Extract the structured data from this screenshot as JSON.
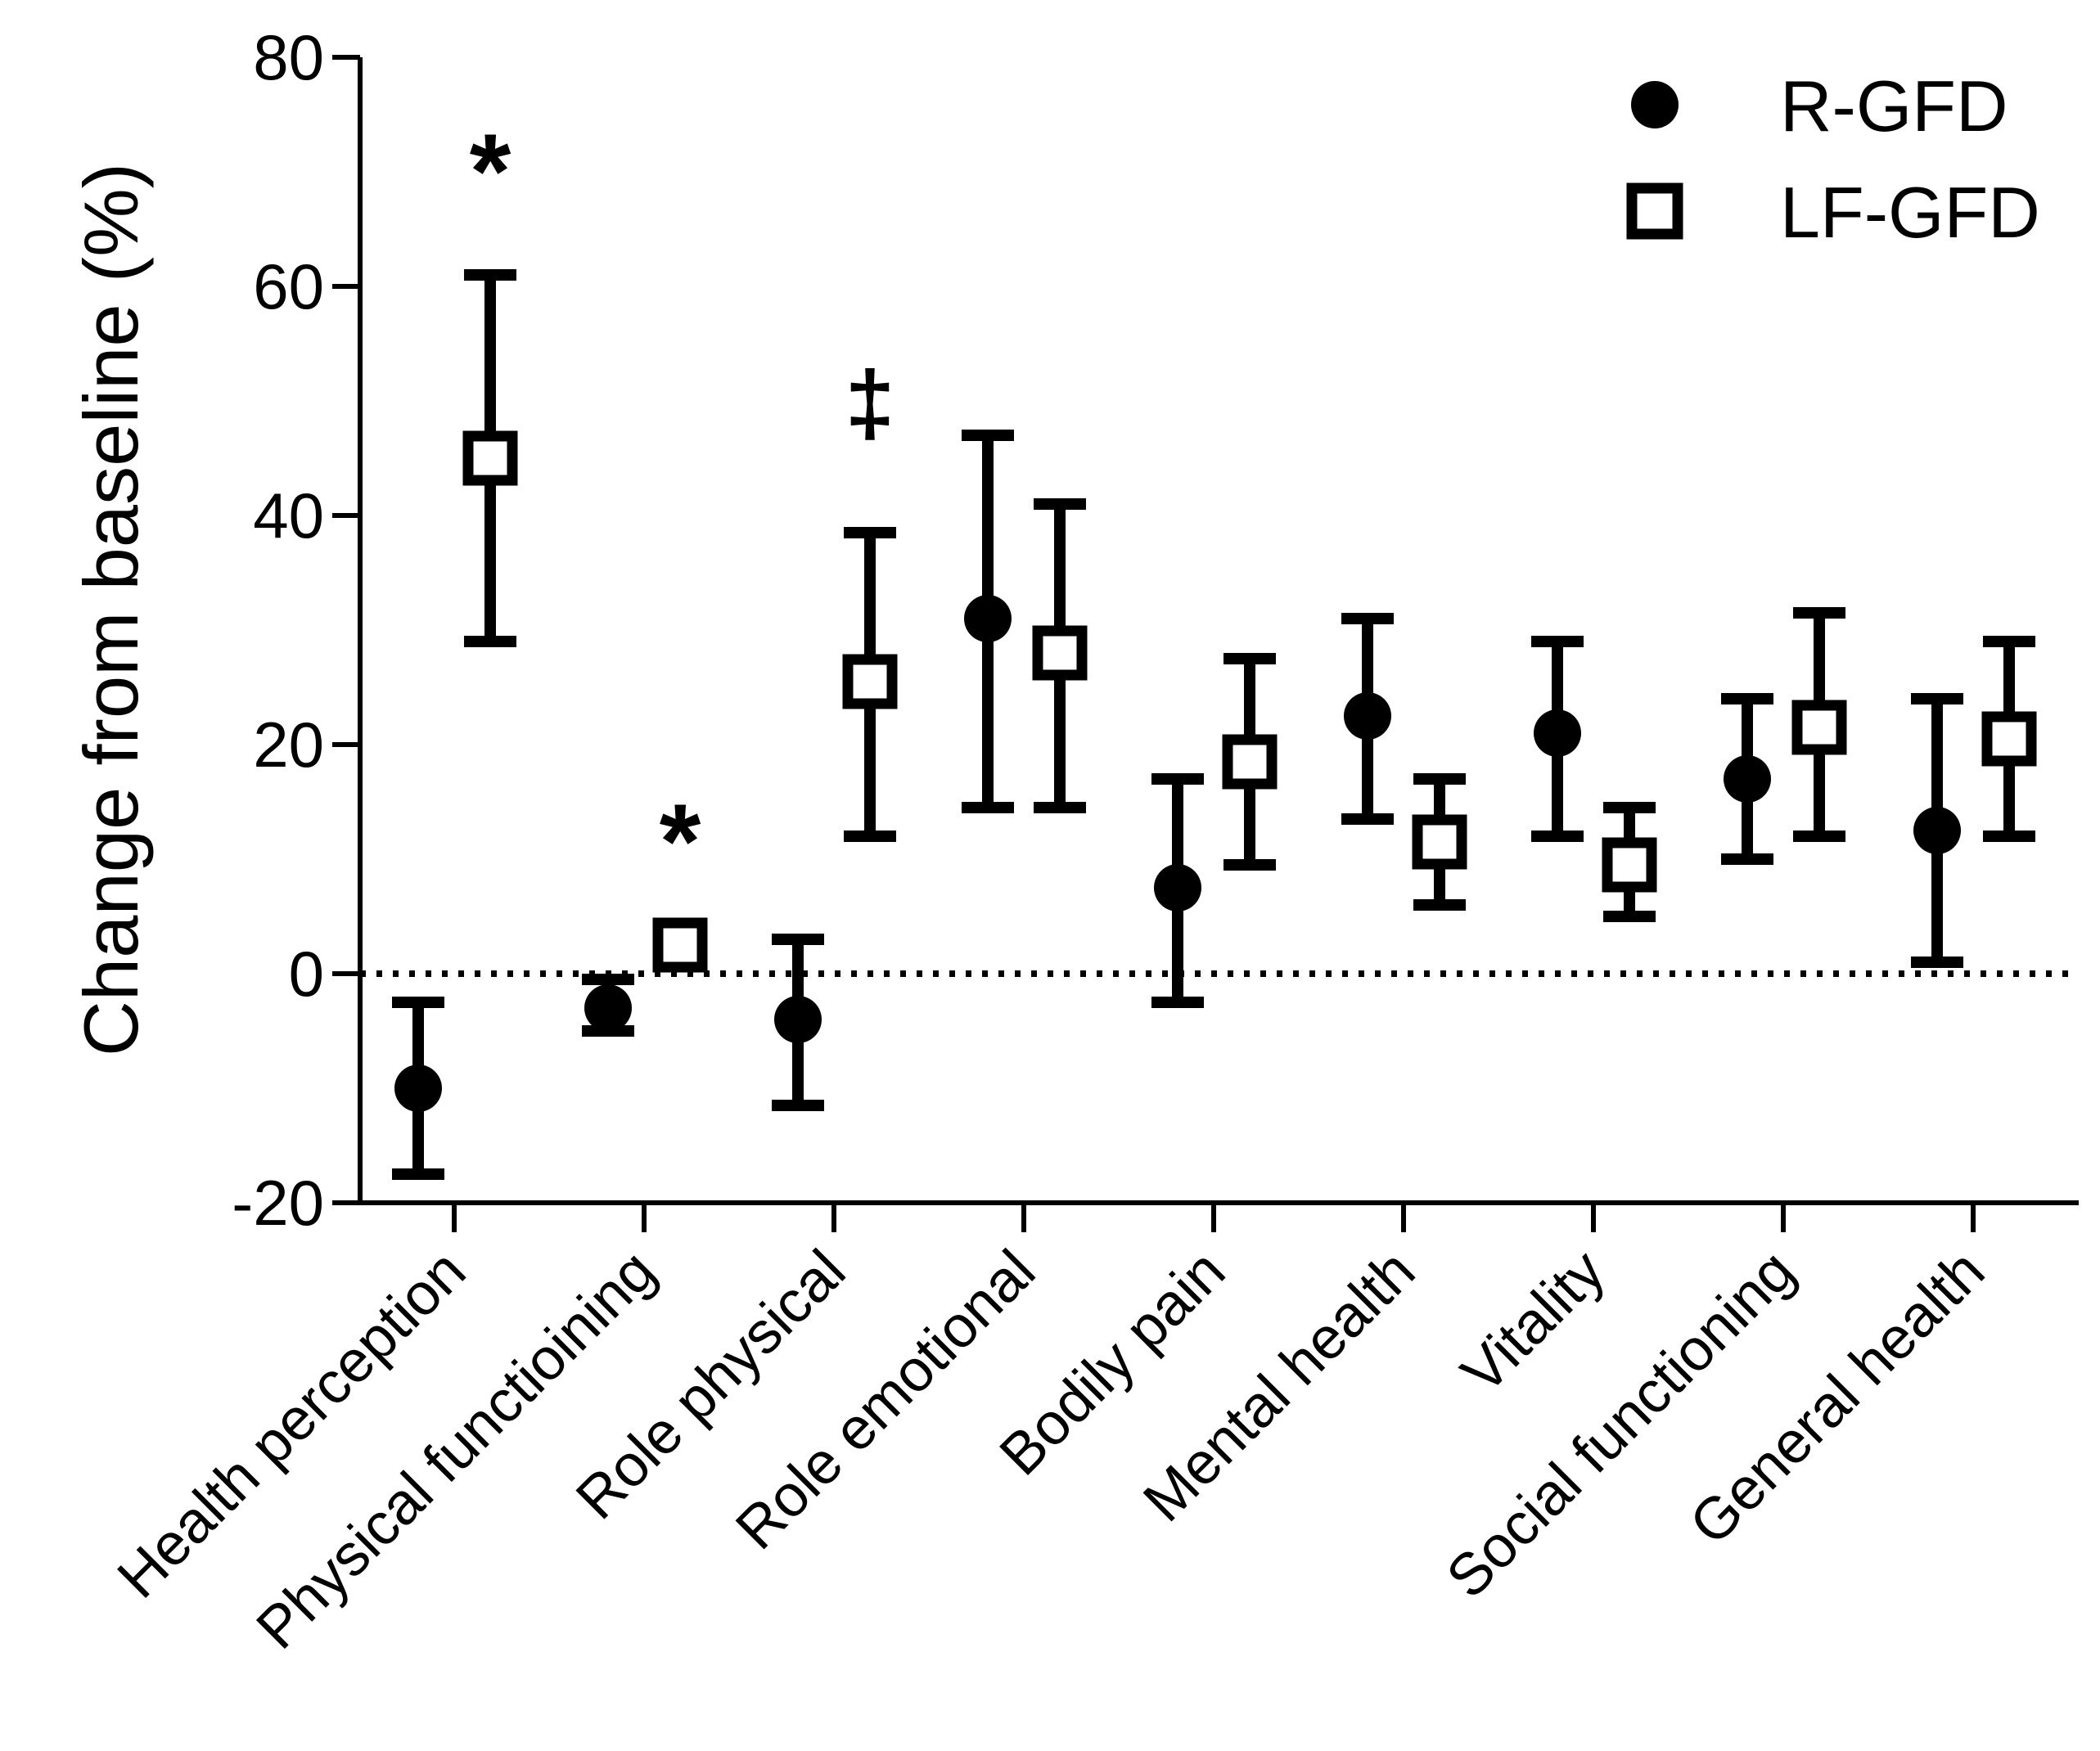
{
  "chart_data": {
    "type": "scatter",
    "title": "",
    "xlabel": "",
    "ylabel": "Change from baseline (%)",
    "ylim": [
      -20,
      80
    ],
    "yticks": [
      -20,
      0,
      20,
      40,
      60,
      80
    ],
    "reference_line": 0,
    "categories": [
      "Health perception",
      "Physical functioining",
      "Role physical",
      "Role emotional",
      "Bodily pain",
      "Mental health",
      "Vitality",
      "Social functioning",
      "General health"
    ],
    "series": [
      {
        "name": "R-GFD",
        "marker": "filled-circle",
        "color": "#000000",
        "values": [
          -10,
          -3,
          -4,
          31,
          7.5,
          22.5,
          21,
          17,
          12.5
        ],
        "err_low": [
          -17.5,
          -5,
          -11.5,
          14.5,
          -2.5,
          13.5,
          12,
          10,
          1
        ],
        "err_high": [
          -2.5,
          -0.5,
          3,
          47,
          17,
          31,
          29,
          24,
          24
        ]
      },
      {
        "name": "LF-GFD",
        "marker": "open-square",
        "color": "#000000",
        "values": [
          45,
          2.5,
          25.5,
          28,
          18.5,
          11.5,
          9.5,
          21.5,
          20.5
        ],
        "err_low": [
          29,
          2.5,
          12,
          14.5,
          9.5,
          6,
          5,
          12,
          12
        ],
        "err_high": [
          61,
          2.5,
          38.5,
          41,
          27.5,
          17,
          14.5,
          31.5,
          29
        ]
      }
    ],
    "annotations": [
      {
        "text": "*",
        "category_index": 0,
        "y": 71
      },
      {
        "text": "*",
        "category_index": 1,
        "y": 12.5
      },
      {
        "text": "‡",
        "category_index": 2,
        "y": 50
      }
    ],
    "legend": {
      "position": "top-right",
      "entries": [
        "R-GFD",
        "LF-GFD"
      ]
    }
  }
}
